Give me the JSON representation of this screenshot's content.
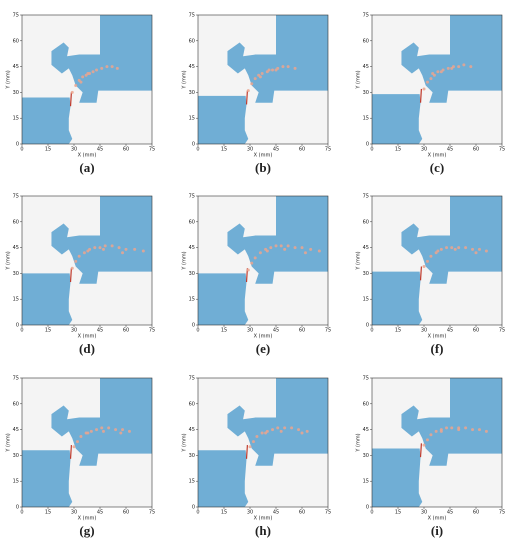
{
  "chart_data": [
    {
      "type": "scatter",
      "caption": "(a)",
      "xlabel": "X (mm)",
      "ylabel": "Y (mm)",
      "xlim": [
        0,
        75
      ],
      "ylim": [
        0,
        75
      ],
      "xticks": [
        0,
        15,
        30,
        45,
        60,
        75
      ],
      "yticks": [
        0,
        15,
        30,
        45,
        60,
        75
      ],
      "series": [
        {
          "color": "#eba48e",
          "x": [
            29,
            31,
            33,
            35,
            37,
            39,
            41,
            43,
            46,
            49,
            52,
            55,
            34,
            38
          ],
          "values": [
            30,
            34,
            37,
            39,
            40,
            41,
            42,
            43,
            44,
            45,
            45,
            44,
            36,
            41
          ]
        }
      ]
    },
    {
      "type": "scatter",
      "caption": "(b)",
      "xlabel": "X (mm)",
      "ylabel": "Y (mm)",
      "xlim": [
        0,
        75
      ],
      "ylim": [
        0,
        75
      ],
      "xticks": [
        0,
        15,
        30,
        45,
        60,
        75
      ],
      "yticks": [
        0,
        15,
        30,
        45,
        60,
        75
      ],
      "series": [
        {
          "color": "#eba48e",
          "x": [
            29,
            31,
            33,
            35,
            37,
            40,
            43,
            46,
            49,
            52,
            56,
            36,
            41,
            45
          ],
          "values": [
            31,
            35,
            38,
            40,
            41,
            42,
            43,
            44,
            45,
            45,
            44,
            39,
            43,
            43
          ]
        }
      ]
    },
    {
      "type": "scatter",
      "caption": "(c)",
      "xlabel": "X (mm)",
      "ylabel": "Y (mm)",
      "xlim": [
        0,
        75
      ],
      "ylim": [
        0,
        75
      ],
      "xticks": [
        0,
        15,
        30,
        45,
        60,
        75
      ],
      "yticks": [
        0,
        15,
        30,
        45,
        60,
        75
      ],
      "series": [
        {
          "color": "#eba48e",
          "x": [
            30,
            32,
            34,
            36,
            38,
            41,
            44,
            47,
            50,
            53,
            57,
            35,
            40,
            46
          ],
          "values": [
            32,
            36,
            38,
            40,
            42,
            43,
            44,
            45,
            45,
            46,
            45,
            41,
            42,
            44
          ]
        }
      ]
    },
    {
      "type": "scatter",
      "caption": "(d)",
      "xlabel": "X (mm)",
      "ylabel": "Y (mm)",
      "xlim": [
        0,
        75
      ],
      "ylim": [
        0,
        75
      ],
      "xticks": [
        0,
        15,
        30,
        45,
        60,
        75
      ],
      "yticks": [
        0,
        15,
        30,
        45,
        60,
        75
      ],
      "series": [
        {
          "color": "#eba48e",
          "x": [
            29,
            31,
            33,
            36,
            39,
            42,
            45,
            48,
            52,
            56,
            60,
            65,
            70,
            38,
            47,
            58
          ],
          "values": [
            33,
            37,
            40,
            42,
            44,
            45,
            45,
            46,
            46,
            45,
            44,
            44,
            43,
            43,
            44,
            42
          ]
        }
      ]
    },
    {
      "type": "scatter",
      "caption": "(e)",
      "xlabel": "X (mm)",
      "ylabel": "Y (mm)",
      "xlim": [
        0,
        75
      ],
      "ylim": [
        0,
        75
      ],
      "xticks": [
        0,
        15,
        30,
        45,
        60,
        75
      ],
      "yticks": [
        0,
        15,
        30,
        45,
        60,
        75
      ],
      "series": [
        {
          "color": "#eba48e",
          "x": [
            29,
            31,
            33,
            36,
            39,
            42,
            45,
            48,
            52,
            56,
            60,
            65,
            70,
            40,
            50,
            62
          ],
          "values": [
            32,
            36,
            39,
            42,
            44,
            45,
            46,
            46,
            46,
            45,
            45,
            44,
            43,
            43,
            44,
            42
          ]
        }
      ]
    },
    {
      "type": "scatter",
      "caption": "(f)",
      "xlabel": "X (mm)",
      "ylabel": "Y (mm)",
      "xlim": [
        0,
        75
      ],
      "ylim": [
        0,
        75
      ],
      "xticks": [
        0,
        15,
        30,
        45,
        60,
        75
      ],
      "yticks": [
        0,
        15,
        30,
        45,
        60,
        75
      ],
      "series": [
        {
          "color": "#eba48e",
          "x": [
            30,
            32,
            34,
            37,
            40,
            43,
            46,
            50,
            54,
            58,
            62,
            66,
            38,
            48,
            60
          ],
          "values": [
            34,
            37,
            40,
            42,
            44,
            45,
            45,
            45,
            45,
            44,
            44,
            43,
            43,
            44,
            42
          ]
        }
      ]
    },
    {
      "type": "scatter",
      "caption": "(g)",
      "xlabel": "X (mm)",
      "ylabel": "Y (mm)",
      "xlim": [
        0,
        75
      ],
      "ylim": [
        0,
        75
      ],
      "xticks": [
        0,
        15,
        30,
        45,
        60,
        75
      ],
      "yticks": [
        0,
        15,
        30,
        45,
        60,
        75
      ],
      "series": [
        {
          "color": "#eba48e",
          "x": [
            30,
            32,
            34,
            37,
            40,
            43,
            46,
            50,
            54,
            58,
            62,
            38,
            47,
            57
          ],
          "values": [
            35,
            38,
            41,
            43,
            44,
            45,
            46,
            46,
            45,
            45,
            44,
            43,
            44,
            43
          ]
        }
      ]
    },
    {
      "type": "scatter",
      "caption": "(h)",
      "xlabel": "X (mm)",
      "ylabel": "Y (mm)",
      "xlim": [
        0,
        75
      ],
      "ylim": [
        0,
        75
      ],
      "xticks": [
        0,
        15,
        30,
        45,
        60,
        75
      ],
      "yticks": [
        0,
        15,
        30,
        45,
        60,
        75
      ],
      "series": [
        {
          "color": "#eba48e",
          "x": [
            30,
            32,
            34,
            37,
            40,
            43,
            46,
            50,
            54,
            58,
            63,
            39,
            48,
            60
          ],
          "values": [
            35,
            38,
            41,
            43,
            44,
            45,
            46,
            46,
            46,
            45,
            44,
            43,
            44,
            43
          ]
        }
      ]
    },
    {
      "type": "scatter",
      "caption": "(i)",
      "xlabel": "X (mm)",
      "ylabel": "Y (mm)",
      "xlim": [
        0,
        75
      ],
      "ylim": [
        0,
        75
      ],
      "xticks": [
        0,
        15,
        30,
        45,
        60,
        75
      ],
      "yticks": [
        0,
        15,
        30,
        45,
        60,
        75
      ],
      "series": [
        {
          "color": "#eba48e",
          "x": [
            30,
            32,
            34,
            37,
            40,
            43,
            46,
            50,
            54,
            58,
            62,
            66,
            40,
            50
          ],
          "values": [
            36,
            39,
            42,
            44,
            45,
            46,
            46,
            46,
            46,
            45,
            45,
            44,
            44,
            45
          ]
        }
      ]
    }
  ]
}
